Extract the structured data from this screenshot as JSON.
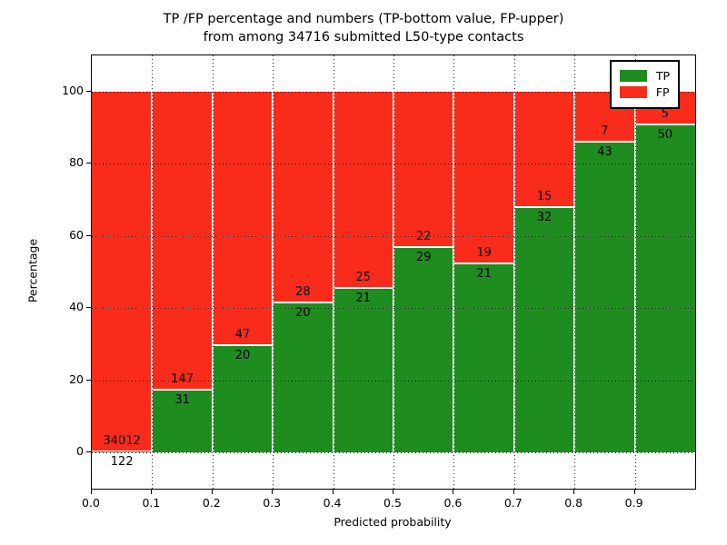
{
  "title": {
    "line1": "TP /FP percentage and numbers (TP-bottom value, FP-upper)",
    "line2": "from among 34716 submitted L50-type contacts"
  },
  "chart_data": {
    "type": "bar",
    "stacked": true,
    "title": "TP /FP percentage and numbers (TP-bottom value, FP-upper) from among 34716 submitted L50-type contacts",
    "xlabel": "Predicted probability",
    "ylabel": "Percentage",
    "categories": [
      "0.0-0.1",
      "0.1-0.2",
      "0.2-0.3",
      "0.3-0.4",
      "0.4-0.5",
      "0.5-0.6",
      "0.6-0.7",
      "0.7-0.8",
      "0.8-0.9",
      "0.9-1.0"
    ],
    "x_tick_labels": [
      "0.0",
      "0.1",
      "0.2",
      "0.3",
      "0.4",
      "0.5",
      "0.6",
      "0.7",
      "0.8",
      "0.9"
    ],
    "y_ticks": [
      0,
      20,
      40,
      60,
      80,
      100
    ],
    "y_tick_labels": [
      "0",
      "20",
      "40",
      "60",
      "80",
      "100"
    ],
    "ylim": [
      -10,
      110
    ],
    "grid": true,
    "total_submitted": 34716,
    "series": [
      {
        "name": "TP",
        "color": "#1f8c1f",
        "counts": [
          122,
          31,
          20,
          20,
          21,
          29,
          21,
          32,
          43,
          50
        ],
        "pct": [
          0.36,
          17.42,
          29.85,
          41.67,
          45.65,
          56.86,
          52.5,
          68.09,
          86.0,
          90.91
        ]
      },
      {
        "name": "FP",
        "color": "#f92c1c",
        "counts": [
          34012,
          147,
          47,
          28,
          25,
          22,
          19,
          15,
          7,
          5
        ],
        "pct": [
          99.64,
          82.58,
          70.15,
          58.33,
          54.35,
          43.14,
          47.5,
          31.91,
          14.0,
          9.09
        ]
      }
    ],
    "legend": {
      "position": "upper right",
      "items": [
        {
          "label": "TP",
          "color": "#1f8c1f"
        },
        {
          "label": "FP",
          "color": "#f92c1c"
        }
      ]
    }
  }
}
